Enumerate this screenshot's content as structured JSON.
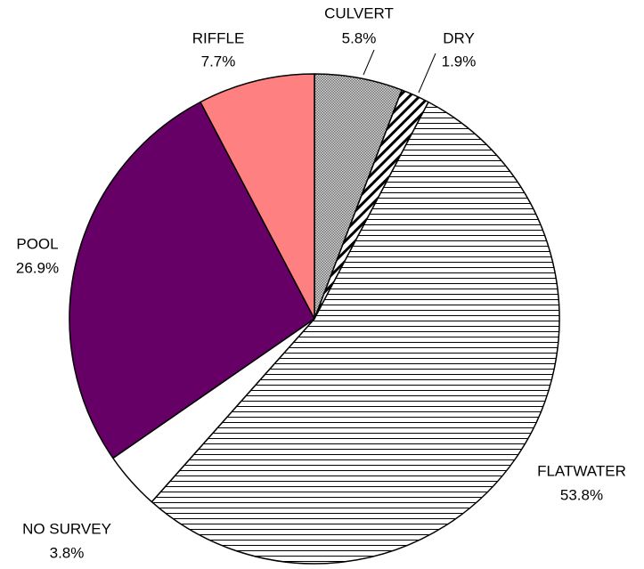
{
  "chart_data": {
    "type": "pie",
    "categories": [
      "CULVERT",
      "DRY",
      "FLATWATER",
      "NO SURVEY",
      "POOL",
      "RIFFLE"
    ],
    "values": [
      5.8,
      1.9,
      53.8,
      3.8,
      26.9,
      7.7
    ],
    "value_labels": [
      "5.8%",
      "1.9%",
      "53.8%",
      "3.8%",
      "26.9%",
      "7.7%"
    ],
    "colors": [
      "#a0a0a0",
      "#ffffff",
      "#ffffff",
      "#ffffff",
      "#660066",
      "#ff8080"
    ],
    "patterns": [
      "checker",
      "diagonal",
      "horizontal",
      null,
      null,
      null
    ]
  }
}
